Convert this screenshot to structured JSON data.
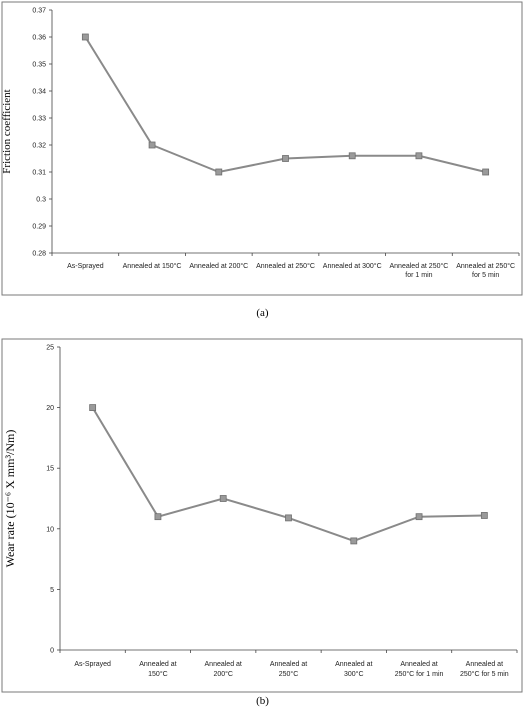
{
  "chart_data": [
    {
      "type": "line",
      "panel": "(a)",
      "title": "",
      "xlabel": "",
      "ylabel": "Friction coefficient",
      "ylim": [
        0.28,
        0.37
      ],
      "yticks": [
        "0.28",
        "0.29",
        "0.3",
        "0.31",
        "0.32",
        "0.33",
        "0.34",
        "0.35",
        "0.36",
        "0.37"
      ],
      "grid": false,
      "legend": "none",
      "line_color": "#8a8a8a",
      "categories": [
        [
          "As-Sprayed"
        ],
        [
          "Annealed at 150°C"
        ],
        [
          "Annealed at 200°C"
        ],
        [
          "Annealed at 250°C"
        ],
        [
          "Annealed at 300°C"
        ],
        [
          "Annealed at 250°C",
          "for 1 min"
        ],
        [
          "Annealed at 250°C",
          "for 5 min"
        ]
      ],
      "values": [
        0.36,
        0.32,
        0.31,
        0.315,
        0.316,
        0.316,
        0.31
      ]
    },
    {
      "type": "line",
      "panel": "(b)",
      "title": "",
      "xlabel": "",
      "ylabel": "Wear rate (10⁻⁶ X mm³/Nm)",
      "ylim": [
        0,
        25
      ],
      "yticks": [
        "0",
        "5",
        "10",
        "15",
        "20",
        "25"
      ],
      "grid": false,
      "legend": "none",
      "line_color": "#8a8a8a",
      "categories": [
        [
          "As-Sprayed"
        ],
        [
          "Annealed at",
          "150°C"
        ],
        [
          "Annealed at",
          "200°C"
        ],
        [
          "Annealed at",
          "250°C"
        ],
        [
          "Annealed at",
          "300°C"
        ],
        [
          "Annealed at",
          "250°C for 1 min"
        ],
        [
          "Annealed at",
          "250°C for 5 min"
        ]
      ],
      "values": [
        20,
        11,
        12.5,
        10.9,
        9,
        11,
        11.1
      ]
    }
  ],
  "captions": {
    "a": "(a)",
    "b": "(b)"
  }
}
